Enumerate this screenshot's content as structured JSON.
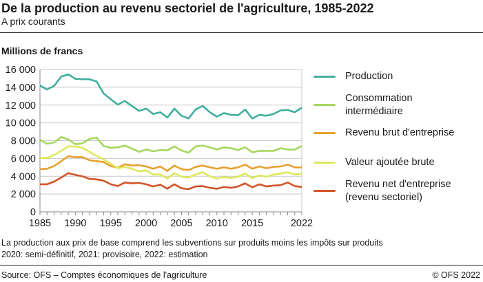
{
  "header": {
    "title": "De la production au revenu sectoriel de l'agriculture, 1985-2022",
    "subtitle": "A prix courants"
  },
  "footer": {
    "note1": "La production aux prix de base comprend les subventions sur produits moins les impôts sur produits",
    "note2": "2020: semi-définitif, 2021: provisoire, 2022: estimation",
    "source": "Source: OFS – Comptes économiques de l'agriculture",
    "copyright": "© OFS 2022"
  },
  "chart_data": {
    "type": "line",
    "title": "De la production au revenu sectoriel de l'agriculture, 1985-2022",
    "subtitle": "A prix courants",
    "ylabel": "Millions de francs",
    "xlabel": "",
    "ylim": [
      0,
      16000
    ],
    "yticks": [
      "0",
      "2 000",
      "4 000",
      "6 000",
      "8 000",
      "10 000",
      "12 000",
      "14 000",
      "16 000"
    ],
    "xticks": [
      "1985",
      "1990",
      "1995",
      "2000",
      "2005",
      "2010",
      "2015",
      "2022"
    ],
    "grid": "horizontal",
    "legend": "right",
    "x": [
      1985,
      1986,
      1987,
      1988,
      1989,
      1990,
      1991,
      1992,
      1993,
      1994,
      1995,
      1996,
      1997,
      1998,
      1999,
      2000,
      2001,
      2002,
      2003,
      2004,
      2005,
      2006,
      2007,
      2008,
      2009,
      2010,
      2011,
      2012,
      2013,
      2014,
      2015,
      2016,
      2017,
      2018,
      2019,
      2020,
      2021,
      2022
    ],
    "series": [
      {
        "name": "Production",
        "color": "#3fae9d",
        "values": [
          14200,
          13750,
          14150,
          15200,
          15450,
          14950,
          14900,
          14900,
          14650,
          13300,
          12650,
          12050,
          12450,
          11900,
          11350,
          11600,
          11000,
          11200,
          10600,
          11600,
          10800,
          10500,
          11500,
          11900,
          11200,
          10700,
          11100,
          10900,
          10850,
          11500,
          10500,
          10900,
          10800,
          11000,
          11400,
          11450,
          11200,
          11700
        ]
      },
      {
        "name": "Consommation intermédiaire",
        "color": "#a6d65e",
        "values": [
          8100,
          7650,
          7800,
          8400,
          8150,
          7600,
          7700,
          8200,
          8350,
          7400,
          7200,
          7250,
          7450,
          7100,
          6750,
          7000,
          6800,
          6950,
          6900,
          7350,
          6900,
          6650,
          7350,
          7450,
          7250,
          7000,
          7250,
          7150,
          6950,
          7250,
          6700,
          6850,
          6850,
          6850,
          7150,
          7000,
          7000,
          7400
        ]
      },
      {
        "name": "Revenu brut d'entreprise",
        "color": "#e6a030",
        "values": [
          4800,
          4850,
          5150,
          5700,
          6250,
          6150,
          6150,
          5800,
          5700,
          5600,
          5150,
          4950,
          5350,
          5200,
          5250,
          5100,
          4850,
          5100,
          4600,
          5200,
          4800,
          4700,
          5050,
          5200,
          5000,
          4850,
          5000,
          4850,
          5000,
          5300,
          4850,
          5100,
          4900,
          5050,
          5100,
          5300,
          5000,
          5000
        ]
      },
      {
        "name": "Valeur ajoutée brute",
        "color": "#dde85a",
        "values": [
          6050,
          6050,
          6400,
          6850,
          7350,
          7350,
          7200,
          6750,
          6300,
          5900,
          5400,
          4900,
          5050,
          4850,
          4550,
          4650,
          4200,
          4200,
          3750,
          4350,
          3950,
          3850,
          4200,
          4450,
          4000,
          3750,
          3900,
          3800,
          3950,
          4300,
          3800,
          4100,
          3950,
          4200,
          4300,
          4450,
          4200,
          4300
        ]
      },
      {
        "name": "Revenu net d'entreprise\n(revenu sectoriel)",
        "color": "#d35327",
        "values": [
          3100,
          3100,
          3400,
          3850,
          4350,
          4150,
          4000,
          3700,
          3650,
          3500,
          3100,
          2900,
          3300,
          3200,
          3250,
          3100,
          2850,
          3050,
          2600,
          3100,
          2650,
          2550,
          2850,
          2900,
          2700,
          2600,
          2800,
          2700,
          2850,
          3200,
          2750,
          3100,
          2850,
          2950,
          3000,
          3300,
          2900,
          2800
        ]
      }
    ]
  }
}
